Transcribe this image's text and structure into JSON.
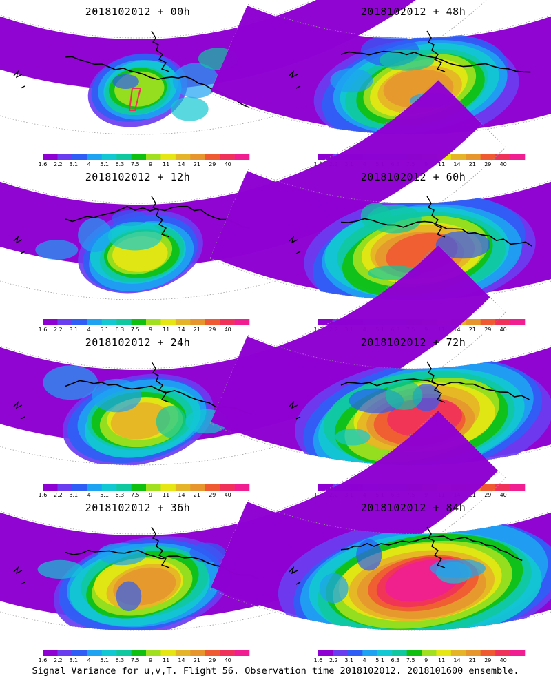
{
  "chart_data": [
    {
      "type": "heatmap",
      "title": "2018102012 + 00h",
      "lead_hours": 0
    },
    {
      "type": "heatmap",
      "title": "2018102012 + 48h",
      "lead_hours": 48
    },
    {
      "type": "heatmap",
      "title": "2018102012 + 12h",
      "lead_hours": 12
    },
    {
      "type": "heatmap",
      "title": "2018102012 + 60h",
      "lead_hours": 60
    },
    {
      "type": "heatmap",
      "title": "2018102012 + 24h",
      "lead_hours": 24
    },
    {
      "type": "heatmap",
      "title": "2018102012 + 72h",
      "lead_hours": 72
    },
    {
      "type": "heatmap",
      "title": "2018102012 + 36h",
      "lead_hours": 36
    },
    {
      "type": "heatmap",
      "title": "2018102012 + 84h",
      "lead_hours": 84
    }
  ],
  "colorbar": {
    "labels": [
      "1.6",
      "2.2",
      "3.1",
      "4",
      "5.1",
      "6.3",
      "7.5",
      "9",
      "11",
      "14",
      "21",
      "29",
      "40"
    ],
    "colors": [
      "#8f00d2",
      "#8f00d2",
      "#6b3df0",
      "#2e5ef5",
      "#1ea2f2",
      "#12c8d2",
      "#10c8a0",
      "#10c010",
      "#a0e020",
      "#e6e614",
      "#e6b428",
      "#e6962d",
      "#f05a32",
      "#f0325a",
      "#f01e90"
    ]
  },
  "caption": "Signal Variance for u,v,T. Flight 56. Observation time 2018102012. 2018101600 ensemble."
}
